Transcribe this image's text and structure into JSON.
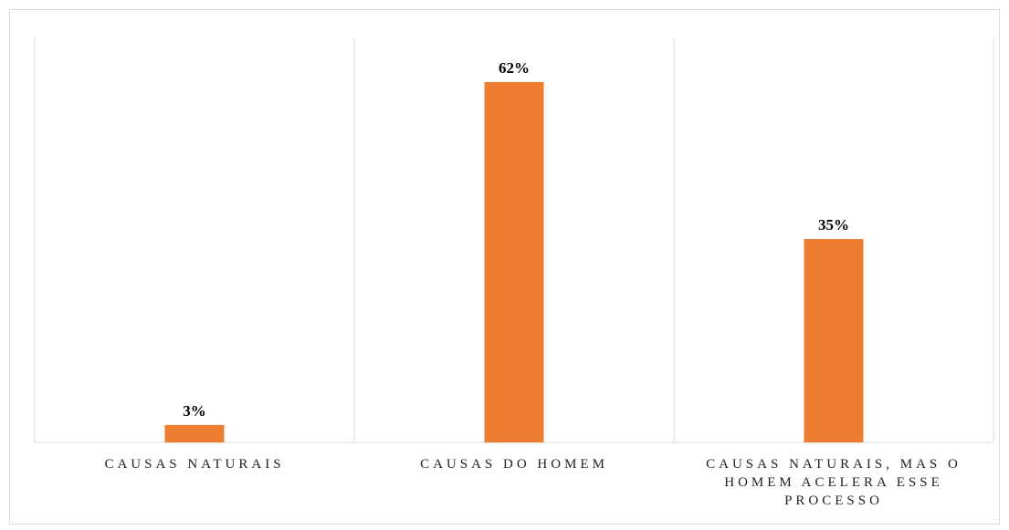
{
  "chart_data": {
    "type": "bar",
    "categories": [
      "CAUSAS NATURAIS",
      "CAUSAS DO HOMEM",
      "CAUSAS NATURAIS, MAS O HOMEM ACELERA ESSE PROCESSO"
    ],
    "values": [
      3,
      62,
      35
    ],
    "value_labels": [
      "3%",
      "62%",
      "35%"
    ],
    "color": "#ed7d31"
  }
}
